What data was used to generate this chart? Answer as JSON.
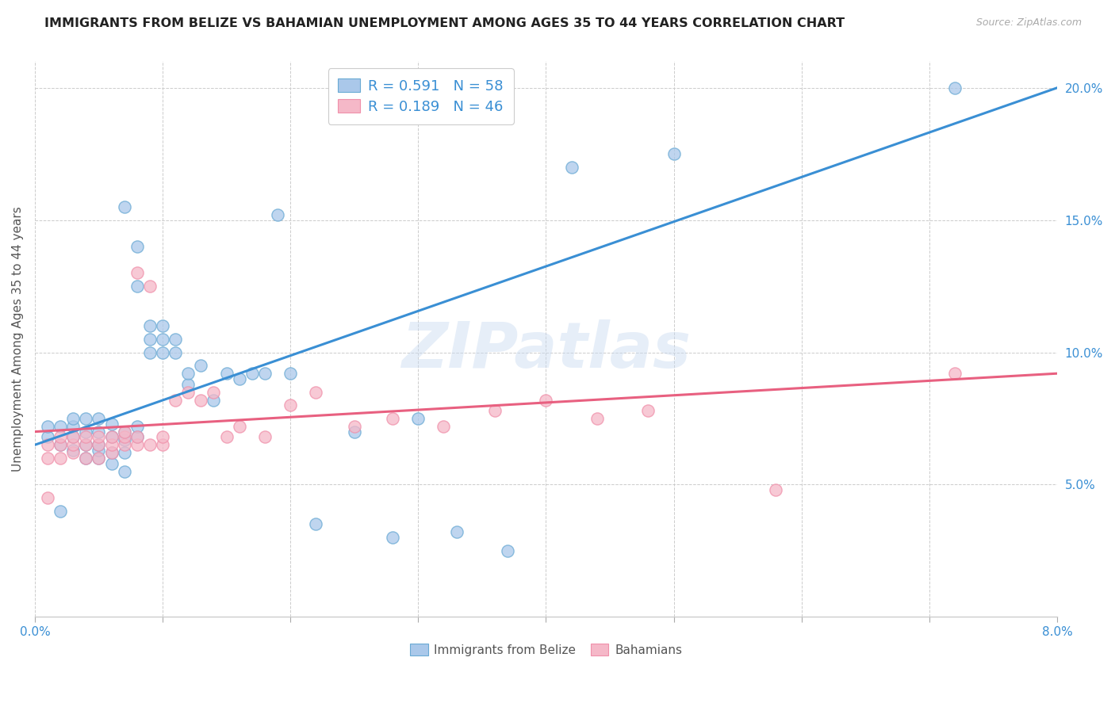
{
  "title": "IMMIGRANTS FROM BELIZE VS BAHAMIAN UNEMPLOYMENT AMONG AGES 35 TO 44 YEARS CORRELATION CHART",
  "source": "Source: ZipAtlas.com",
  "ylabel": "Unemployment Among Ages 35 to 44 years",
  "xlim": [
    0,
    0.08
  ],
  "ylim": [
    0,
    0.21
  ],
  "xticks": [
    0.0,
    0.01,
    0.02,
    0.03,
    0.04,
    0.05,
    0.06,
    0.07,
    0.08
  ],
  "xticklabels": [
    "0.0%",
    "",
    "",
    "",
    "",
    "",
    "",
    "",
    "8.0%"
  ],
  "yticks_right": [
    0.05,
    0.1,
    0.15,
    0.2
  ],
  "yticklabels_right": [
    "5.0%",
    "10.0%",
    "15.0%",
    "20.0%"
  ],
  "blue_dot_face": "#aac8ea",
  "blue_dot_edge": "#6aaad4",
  "pink_dot_face": "#f5b8c8",
  "pink_dot_edge": "#f090aa",
  "line_blue": "#3a8fd4",
  "line_pink": "#e86080",
  "legend_blue_label": "R = 0.591   N = 58",
  "legend_pink_label": "R = 0.189   N = 46",
  "legend_label_blue": "Immigrants from Belize",
  "legend_label_pink": "Bahamians",
  "watermark": "ZIPatlas",
  "blue_line_x0": 0.0,
  "blue_line_y0": 0.065,
  "blue_line_x1": 0.08,
  "blue_line_y1": 0.2,
  "pink_line_x0": 0.0,
  "pink_line_y0": 0.07,
  "pink_line_x1": 0.08,
  "pink_line_y1": 0.092,
  "blue_scatter_x": [
    0.001,
    0.001,
    0.002,
    0.002,
    0.002,
    0.003,
    0.003,
    0.003,
    0.003,
    0.004,
    0.004,
    0.004,
    0.004,
    0.005,
    0.005,
    0.005,
    0.005,
    0.005,
    0.006,
    0.006,
    0.006,
    0.006,
    0.007,
    0.007,
    0.007,
    0.007,
    0.007,
    0.008,
    0.008,
    0.008,
    0.008,
    0.009,
    0.009,
    0.009,
    0.01,
    0.01,
    0.01,
    0.011,
    0.011,
    0.012,
    0.012,
    0.013,
    0.014,
    0.015,
    0.016,
    0.017,
    0.018,
    0.019,
    0.02,
    0.022,
    0.025,
    0.028,
    0.03,
    0.033,
    0.037,
    0.042,
    0.05,
    0.072
  ],
  "blue_scatter_y": [
    0.068,
    0.072,
    0.04,
    0.065,
    0.072,
    0.063,
    0.068,
    0.072,
    0.075,
    0.06,
    0.065,
    0.07,
    0.075,
    0.06,
    0.063,
    0.065,
    0.07,
    0.075,
    0.058,
    0.062,
    0.068,
    0.073,
    0.055,
    0.062,
    0.067,
    0.07,
    0.155,
    0.068,
    0.072,
    0.14,
    0.125,
    0.1,
    0.105,
    0.11,
    0.1,
    0.105,
    0.11,
    0.1,
    0.105,
    0.088,
    0.092,
    0.095,
    0.082,
    0.092,
    0.09,
    0.092,
    0.092,
    0.152,
    0.092,
    0.035,
    0.07,
    0.03,
    0.075,
    0.032,
    0.025,
    0.17,
    0.175,
    0.2
  ],
  "pink_scatter_x": [
    0.001,
    0.001,
    0.001,
    0.002,
    0.002,
    0.002,
    0.003,
    0.003,
    0.003,
    0.004,
    0.004,
    0.004,
    0.005,
    0.005,
    0.005,
    0.006,
    0.006,
    0.006,
    0.007,
    0.007,
    0.007,
    0.008,
    0.008,
    0.008,
    0.009,
    0.009,
    0.01,
    0.01,
    0.011,
    0.012,
    0.013,
    0.014,
    0.015,
    0.016,
    0.018,
    0.02,
    0.022,
    0.025,
    0.028,
    0.032,
    0.036,
    0.04,
    0.044,
    0.048,
    0.058,
    0.072
  ],
  "pink_scatter_y": [
    0.06,
    0.065,
    0.045,
    0.06,
    0.065,
    0.068,
    0.062,
    0.065,
    0.068,
    0.06,
    0.065,
    0.068,
    0.06,
    0.065,
    0.068,
    0.062,
    0.065,
    0.068,
    0.065,
    0.068,
    0.07,
    0.065,
    0.068,
    0.13,
    0.065,
    0.125,
    0.065,
    0.068,
    0.082,
    0.085,
    0.082,
    0.085,
    0.068,
    0.072,
    0.068,
    0.08,
    0.085,
    0.072,
    0.075,
    0.072,
    0.078,
    0.082,
    0.075,
    0.078,
    0.048,
    0.092
  ]
}
